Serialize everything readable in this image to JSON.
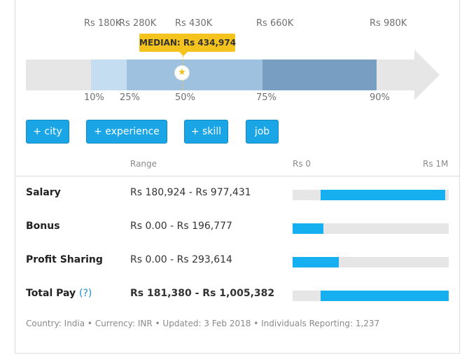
{
  "distribution": {
    "top_labels": [
      "Rs 180K",
      "Rs 280K",
      "Rs 430K",
      "Rs 660K",
      "Rs 980K"
    ],
    "percentile_labels": [
      "10%",
      "25%",
      "50%",
      "75%",
      "90%"
    ],
    "median_label": "MEDIAN: Rs 434,974"
  },
  "filters": {
    "city": "+ city",
    "experience": "+ experience",
    "skill": "+ skill",
    "job": "job"
  },
  "table": {
    "range_header": "Range",
    "scale_min": "Rs 0",
    "scale_max": "Rs 1M",
    "rows": [
      {
        "label": "Salary",
        "range": "Rs 180,924 - Rs 977,431",
        "min_fraction": 0.181,
        "max_fraction": 0.977
      },
      {
        "label": "Bonus",
        "range": "Rs 0.00 - Rs 196,777",
        "min_fraction": 0.0,
        "max_fraction": 0.197
      },
      {
        "label": "Profit Sharing",
        "range": "Rs 0.00 - Rs 293,614",
        "min_fraction": 0.0,
        "max_fraction": 0.294
      },
      {
        "label": "Total Pay",
        "help": "(?)",
        "range": "Rs 181,380 - Rs 1,005,382",
        "min_fraction": 0.181,
        "max_fraction": 1.0
      }
    ]
  },
  "footer": "Country: India  •  Currency: INR  •  Updated: 3 Feb 2018  •  Individuals Reporting: 1,237"
}
